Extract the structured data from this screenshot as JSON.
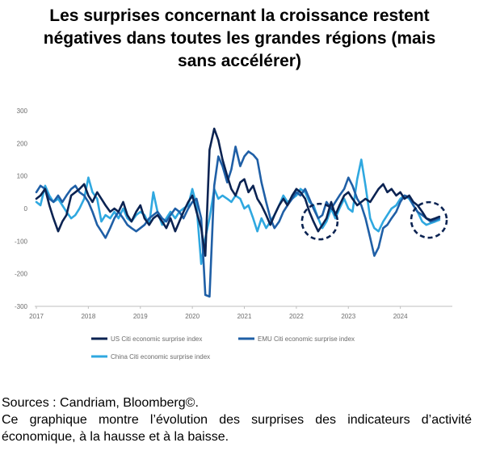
{
  "title_lines": [
    "Les surprises concernant la croissance restent",
    "négatives dans toutes les grandes régions (mais",
    "sans accélérer)"
  ],
  "footer": {
    "sources": "Sources : Candriam, Bloomberg©.",
    "description": "Ce graphique montre l’évolution des surprises des indicateurs d’activité économique, à la hausse et à la baisse."
  },
  "chart_data": {
    "type": "line",
    "title": "",
    "xlabel": "",
    "ylabel": "",
    "ylim": [
      -300,
      300
    ],
    "yticks": [
      300,
      200,
      100,
      0,
      -100,
      -200,
      -300
    ],
    "xlim": [
      2017.0,
      2025.0
    ],
    "xticks": [
      "2017",
      "2018",
      "2019",
      "2020",
      "2021",
      "2022",
      "2023",
      "2024"
    ],
    "grid": false,
    "legend_position": "bottom",
    "annotations": [
      {
        "type": "dashed-circle",
        "x": 2022.45,
        "y": -40
      },
      {
        "type": "dashed-circle",
        "x": 2024.55,
        "y": -35
      }
    ],
    "series": [
      {
        "name": "US Citi economic surprise index",
        "color": "#0b2352",
        "points": [
          [
            2017.0,
            30
          ],
          [
            2017.08,
            40
          ],
          [
            2017.17,
            60
          ],
          [
            2017.25,
            10
          ],
          [
            2017.33,
            -30
          ],
          [
            2017.42,
            -70
          ],
          [
            2017.5,
            -40
          ],
          [
            2017.58,
            -20
          ],
          [
            2017.67,
            40
          ],
          [
            2017.75,
            50
          ],
          [
            2017.83,
            60
          ],
          [
            2017.92,
            75
          ],
          [
            2018.0,
            40
          ],
          [
            2018.08,
            20
          ],
          [
            2018.17,
            50
          ],
          [
            2018.25,
            30
          ],
          [
            2018.33,
            10
          ],
          [
            2018.42,
            -10
          ],
          [
            2018.5,
            0
          ],
          [
            2018.58,
            -10
          ],
          [
            2018.67,
            20
          ],
          [
            2018.75,
            -20
          ],
          [
            2018.83,
            -40
          ],
          [
            2018.92,
            -10
          ],
          [
            2019.0,
            10
          ],
          [
            2019.08,
            -30
          ],
          [
            2019.17,
            -50
          ],
          [
            2019.25,
            -30
          ],
          [
            2019.33,
            -20
          ],
          [
            2019.42,
            -40
          ],
          [
            2019.5,
            -60
          ],
          [
            2019.58,
            -30
          ],
          [
            2019.67,
            -70
          ],
          [
            2019.75,
            -40
          ],
          [
            2019.83,
            -10
          ],
          [
            2019.92,
            20
          ],
          [
            2020.0,
            40
          ],
          [
            2020.08,
            -10
          ],
          [
            2020.17,
            -60
          ],
          [
            2020.25,
            -145
          ],
          [
            2020.33,
            180
          ],
          [
            2020.42,
            245
          ],
          [
            2020.5,
            210
          ],
          [
            2020.58,
            150
          ],
          [
            2020.67,
            100
          ],
          [
            2020.75,
            60
          ],
          [
            2020.83,
            40
          ],
          [
            2020.92,
            80
          ],
          [
            2021.0,
            90
          ],
          [
            2021.08,
            50
          ],
          [
            2021.17,
            70
          ],
          [
            2021.25,
            30
          ],
          [
            2021.33,
            10
          ],
          [
            2021.42,
            -20
          ],
          [
            2021.5,
            -50
          ],
          [
            2021.58,
            -20
          ],
          [
            2021.67,
            10
          ],
          [
            2021.75,
            30
          ],
          [
            2021.83,
            10
          ],
          [
            2021.92,
            40
          ],
          [
            2022.0,
            60
          ],
          [
            2022.08,
            50
          ],
          [
            2022.17,
            30
          ],
          [
            2022.25,
            -10
          ],
          [
            2022.33,
            -40
          ],
          [
            2022.42,
            -70
          ],
          [
            2022.5,
            -50
          ],
          [
            2022.58,
            -30
          ],
          [
            2022.67,
            20
          ],
          [
            2022.75,
            -20
          ],
          [
            2022.83,
            10
          ],
          [
            2022.92,
            40
          ],
          [
            2023.0,
            50
          ],
          [
            2023.08,
            30
          ],
          [
            2023.17,
            10
          ],
          [
            2023.25,
            20
          ],
          [
            2023.33,
            30
          ],
          [
            2023.42,
            20
          ],
          [
            2023.5,
            40
          ],
          [
            2023.58,
            60
          ],
          [
            2023.67,
            75
          ],
          [
            2023.75,
            50
          ],
          [
            2023.83,
            60
          ],
          [
            2023.92,
            40
          ],
          [
            2024.0,
            50
          ],
          [
            2024.08,
            30
          ],
          [
            2024.17,
            40
          ],
          [
            2024.25,
            20
          ],
          [
            2024.33,
            10
          ],
          [
            2024.42,
            -10
          ],
          [
            2024.5,
            -30
          ],
          [
            2024.58,
            -35
          ],
          [
            2024.67,
            -30
          ],
          [
            2024.75,
            -25
          ]
        ]
      },
      {
        "name": "EMU Citi economic surprise index",
        "color": "#1f5fa6",
        "points": [
          [
            2017.0,
            50
          ],
          [
            2017.08,
            70
          ],
          [
            2017.17,
            60
          ],
          [
            2017.25,
            30
          ],
          [
            2017.33,
            20
          ],
          [
            2017.42,
            40
          ],
          [
            2017.5,
            20
          ],
          [
            2017.58,
            40
          ],
          [
            2017.67,
            60
          ],
          [
            2017.75,
            70
          ],
          [
            2017.83,
            50
          ],
          [
            2017.92,
            40
          ],
          [
            2018.0,
            20
          ],
          [
            2018.08,
            -10
          ],
          [
            2018.17,
            -50
          ],
          [
            2018.25,
            -70
          ],
          [
            2018.33,
            -90
          ],
          [
            2018.42,
            -60
          ],
          [
            2018.5,
            -30
          ],
          [
            2018.58,
            -10
          ],
          [
            2018.67,
            -30
          ],
          [
            2018.75,
            -50
          ],
          [
            2018.83,
            -60
          ],
          [
            2018.92,
            -70
          ],
          [
            2019.0,
            -60
          ],
          [
            2019.08,
            -50
          ],
          [
            2019.17,
            -30
          ],
          [
            2019.25,
            -20
          ],
          [
            2019.33,
            -10
          ],
          [
            2019.42,
            -30
          ],
          [
            2019.5,
            -40
          ],
          [
            2019.58,
            -20
          ],
          [
            2019.67,
            0
          ],
          [
            2019.75,
            -10
          ],
          [
            2019.83,
            -30
          ],
          [
            2019.92,
            0
          ],
          [
            2020.0,
            20
          ],
          [
            2020.08,
            30
          ],
          [
            2020.17,
            -30
          ],
          [
            2020.25,
            -265
          ],
          [
            2020.33,
            -270
          ],
          [
            2020.42,
            70
          ],
          [
            2020.5,
            160
          ],
          [
            2020.58,
            130
          ],
          [
            2020.67,
            80
          ],
          [
            2020.75,
            120
          ],
          [
            2020.83,
            190
          ],
          [
            2020.92,
            130
          ],
          [
            2021.0,
            160
          ],
          [
            2021.08,
            175
          ],
          [
            2021.17,
            165
          ],
          [
            2021.25,
            150
          ],
          [
            2021.33,
            80
          ],
          [
            2021.42,
            20
          ],
          [
            2021.5,
            -30
          ],
          [
            2021.58,
            -60
          ],
          [
            2021.67,
            -40
          ],
          [
            2021.75,
            -10
          ],
          [
            2021.83,
            10
          ],
          [
            2021.92,
            30
          ],
          [
            2022.0,
            50
          ],
          [
            2022.08,
            40
          ],
          [
            2022.17,
            60
          ],
          [
            2022.25,
            30
          ],
          [
            2022.33,
            0
          ],
          [
            2022.42,
            -30
          ],
          [
            2022.5,
            -20
          ],
          [
            2022.58,
            20
          ],
          [
            2022.67,
            0
          ],
          [
            2022.75,
            20
          ],
          [
            2022.83,
            40
          ],
          [
            2022.92,
            60
          ],
          [
            2023.0,
            95
          ],
          [
            2023.08,
            70
          ],
          [
            2023.17,
            30
          ],
          [
            2023.25,
            10
          ],
          [
            2023.33,
            -30
          ],
          [
            2023.42,
            -90
          ],
          [
            2023.5,
            -145
          ],
          [
            2023.58,
            -120
          ],
          [
            2023.67,
            -60
          ],
          [
            2023.75,
            -50
          ],
          [
            2023.83,
            -30
          ],
          [
            2023.92,
            -10
          ],
          [
            2024.0,
            20
          ],
          [
            2024.08,
            40
          ],
          [
            2024.17,
            35
          ],
          [
            2024.25,
            10
          ],
          [
            2024.33,
            -10
          ],
          [
            2024.42,
            -20
          ],
          [
            2024.5,
            -30
          ],
          [
            2024.58,
            -40
          ],
          [
            2024.67,
            -35
          ],
          [
            2024.75,
            -30
          ]
        ]
      },
      {
        "name": "China Citi economic surprise index",
        "color": "#2fa8e0",
        "points": [
          [
            2017.0,
            20
          ],
          [
            2017.08,
            10
          ],
          [
            2017.17,
            70
          ],
          [
            2017.25,
            40
          ],
          [
            2017.33,
            20
          ],
          [
            2017.42,
            30
          ],
          [
            2017.5,
            10
          ],
          [
            2017.58,
            -10
          ],
          [
            2017.67,
            -30
          ],
          [
            2017.75,
            -20
          ],
          [
            2017.83,
            0
          ],
          [
            2017.92,
            30
          ],
          [
            2018.0,
            95
          ],
          [
            2018.08,
            50
          ],
          [
            2018.17,
            30
          ],
          [
            2018.25,
            -40
          ],
          [
            2018.33,
            -20
          ],
          [
            2018.42,
            -30
          ],
          [
            2018.5,
            -10
          ],
          [
            2018.58,
            -30
          ],
          [
            2018.67,
            0
          ],
          [
            2018.75,
            -30
          ],
          [
            2018.83,
            -40
          ],
          [
            2018.92,
            -20
          ],
          [
            2019.0,
            -10
          ],
          [
            2019.08,
            -20
          ],
          [
            2019.17,
            -50
          ],
          [
            2019.25,
            50
          ],
          [
            2019.33,
            -10
          ],
          [
            2019.42,
            -50
          ],
          [
            2019.5,
            -30
          ],
          [
            2019.58,
            -10
          ],
          [
            2019.67,
            -30
          ],
          [
            2019.75,
            -10
          ],
          [
            2019.83,
            0
          ],
          [
            2019.92,
            10
          ],
          [
            2020.0,
            60
          ],
          [
            2020.08,
            10
          ],
          [
            2020.17,
            -170
          ],
          [
            2020.25,
            -90
          ],
          [
            2020.33,
            -30
          ],
          [
            2020.42,
            60
          ],
          [
            2020.5,
            30
          ],
          [
            2020.58,
            40
          ],
          [
            2020.67,
            30
          ],
          [
            2020.75,
            20
          ],
          [
            2020.83,
            40
          ],
          [
            2020.92,
            30
          ],
          [
            2021.0,
            0
          ],
          [
            2021.08,
            10
          ],
          [
            2021.17,
            -30
          ],
          [
            2021.25,
            -70
          ],
          [
            2021.33,
            -30
          ],
          [
            2021.42,
            -60
          ],
          [
            2021.5,
            -40
          ],
          [
            2021.58,
            -20
          ],
          [
            2021.67,
            10
          ],
          [
            2021.75,
            40
          ],
          [
            2021.83,
            20
          ],
          [
            2021.92,
            30
          ],
          [
            2022.0,
            40
          ],
          [
            2022.08,
            60
          ],
          [
            2022.17,
            50
          ],
          [
            2022.25,
            20
          ],
          [
            2022.33,
            10
          ],
          [
            2022.42,
            -30
          ],
          [
            2022.5,
            -60
          ],
          [
            2022.58,
            -40
          ],
          [
            2022.67,
            0
          ],
          [
            2022.75,
            -30
          ],
          [
            2022.83,
            0
          ],
          [
            2022.92,
            30
          ],
          [
            2023.0,
            0
          ],
          [
            2023.08,
            -10
          ],
          [
            2023.17,
            90
          ],
          [
            2023.25,
            150
          ],
          [
            2023.33,
            70
          ],
          [
            2023.42,
            -30
          ],
          [
            2023.5,
            -60
          ],
          [
            2023.58,
            -70
          ],
          [
            2023.67,
            -40
          ],
          [
            2023.75,
            -20
          ],
          [
            2023.83,
            0
          ],
          [
            2023.92,
            10
          ],
          [
            2024.0,
            30
          ],
          [
            2024.08,
            40
          ],
          [
            2024.17,
            30
          ],
          [
            2024.25,
            10
          ],
          [
            2024.33,
            -10
          ],
          [
            2024.42,
            -40
          ],
          [
            2024.5,
            -50
          ],
          [
            2024.58,
            -45
          ],
          [
            2024.67,
            -40
          ],
          [
            2024.75,
            -35
          ]
        ]
      }
    ]
  }
}
